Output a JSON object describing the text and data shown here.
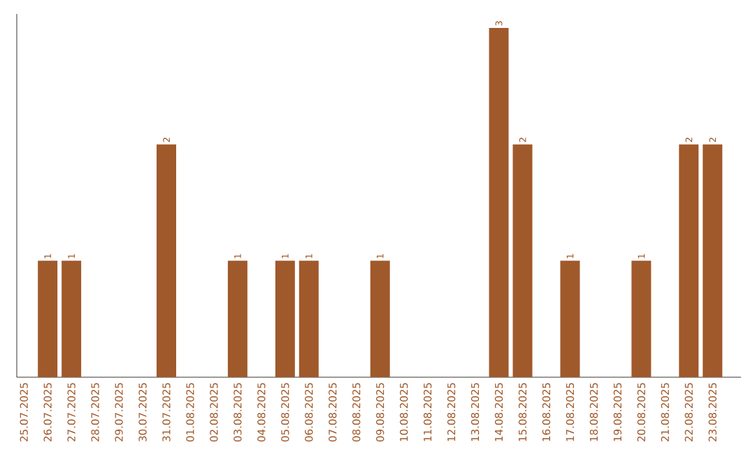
{
  "chart_data": {
    "type": "bar",
    "categories": [
      "25.07.2025",
      "26.07.2025",
      "27.07.2025",
      "28.07.2025",
      "29.07.2025",
      "30.07.2025",
      "31.07.2025",
      "01.08.2025",
      "02.08.2025",
      "03.08.2025",
      "04.08.2025",
      "05.08.2025",
      "06.08.2025",
      "07.08.2025",
      "08.08.2025",
      "09.08.2025",
      "10.08.2025",
      "11.08.2025",
      "12.08.2025",
      "13.08.2025",
      "14.08.2025",
      "15.08.2025",
      "16.08.2025",
      "17.08.2025",
      "18.08.2025",
      "19.08.2025",
      "20.08.2025",
      "21.08.2025",
      "22.08.2025",
      "23.08.2025"
    ],
    "values": [
      0,
      1,
      1,
      0,
      0,
      0,
      2,
      0,
      0,
      1,
      0,
      1,
      1,
      0,
      0,
      1,
      0,
      0,
      0,
      0,
      3,
      2,
      0,
      1,
      0,
      0,
      1,
      0,
      2,
      2
    ],
    "value_labels": [
      null,
      "1",
      "1",
      null,
      null,
      null,
      "2",
      null,
      null,
      "1",
      null,
      "1",
      "1",
      null,
      null,
      "1",
      null,
      null,
      null,
      null,
      "3",
      "2",
      null,
      "1",
      null,
      null,
      "1",
      null,
      "2",
      "2"
    ],
    "color": "#a0592b",
    "ylim": [
      0,
      3.12
    ],
    "tick_labels": "x"
  }
}
